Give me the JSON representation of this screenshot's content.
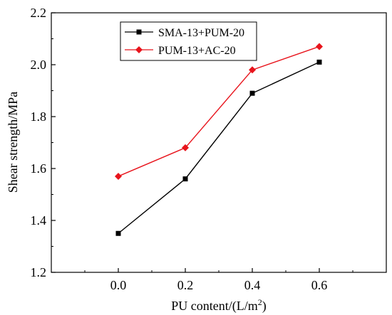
{
  "chart_data": {
    "type": "line",
    "x": [
      0.0,
      0.2,
      0.4,
      0.6
    ],
    "x_tick_labels": [
      "0.0",
      "0.2",
      "0.4",
      "0.6"
    ],
    "y_tick_labels": [
      "1.2",
      "1.4",
      "1.6",
      "1.8",
      "2.0",
      "2.2"
    ],
    "y_ticks": [
      1.2,
      1.4,
      1.6,
      1.8,
      2.0,
      2.2
    ],
    "x_ticks": [
      0.0,
      0.2,
      0.4,
      0.6
    ],
    "xlim": [
      -0.2,
      0.8
    ],
    "ylim": [
      1.2,
      2.2
    ],
    "xlabel_main": "PU content/(L/m",
    "xlabel_sup": "2",
    "xlabel_end": ")",
    "ylabel": "Shear strength/MPa",
    "grid": false,
    "legend_position": "top-center",
    "series": [
      {
        "name": "SMA-13+PUM-20",
        "values": [
          1.35,
          1.56,
          1.89,
          2.01
        ],
        "color": "#000000",
        "marker": "square"
      },
      {
        "name": "PUM-13+AC-20",
        "values": [
          1.57,
          1.68,
          1.98,
          2.07
        ],
        "color": "#e8141c",
        "marker": "diamond"
      }
    ]
  }
}
